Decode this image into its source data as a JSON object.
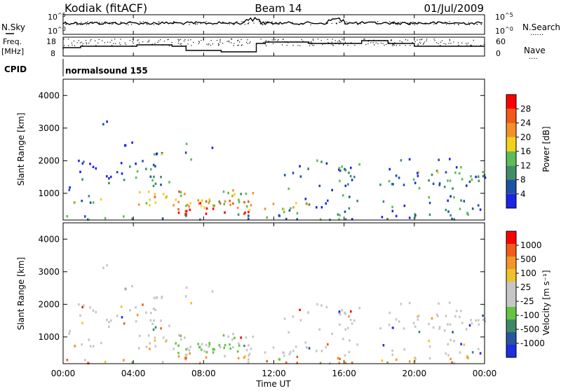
{
  "header": {
    "station": "Kodiak (fitACF)",
    "beam": "Beam 14",
    "date": "01/Jul/2009"
  },
  "side_labels": {
    "nsky": "N.Sky",
    "freq_line1": "Freq.",
    "freq_line2": "[MHz]",
    "cpid": "CPID",
    "nsearch": "N.Search",
    "nave": "Nave",
    "dotted": "......",
    "nave_dotted": "...."
  },
  "cpid_text": "normalsound 155",
  "chart_data": [
    {
      "type": "line",
      "panel": "noise",
      "ylabels": [
        "10^5",
        "10^0"
      ],
      "right_ylabels": [
        "10^5",
        "10^0"
      ],
      "series": [
        {
          "name": "N.Sky"
        },
        {
          "name": "N.Search"
        }
      ]
    },
    {
      "type": "line",
      "panel": "frequency_nave",
      "left_ticks": [
        "18",
        "8"
      ],
      "right_ticks": [
        "60",
        "0"
      ],
      "series": [
        {
          "name": "Freq."
        },
        {
          "name": "Nave"
        }
      ]
    },
    {
      "type": "heatmap",
      "panel": "power",
      "ylabel": "Slant Range [km]",
      "yticks": [
        "1000",
        "2000",
        "3000",
        "4000"
      ],
      "ylim": [
        180,
        4500
      ],
      "xlim": [
        0,
        24
      ],
      "colorbar_label": "Power [dB]",
      "colorbar_ticks": [
        "4",
        "8",
        "12",
        "16",
        "20",
        "24",
        "28"
      ],
      "colorbar_colors": [
        "#1e24e6",
        "#1c52a3",
        "#3f8d6a",
        "#5cbd56",
        "#f1d11d",
        "#f19226",
        "#f25a16",
        "#ff0000"
      ]
    },
    {
      "type": "heatmap",
      "panel": "velocity",
      "ylabel": "Slant Range [km]",
      "yticks": [
        "1000",
        "2000",
        "3000",
        "4000"
      ],
      "ylim": [
        180,
        4500
      ],
      "xlim": [
        0,
        24
      ],
      "xlabel": "Time UT",
      "xticks": [
        "00:00",
        "04:00",
        "08:00",
        "12:00",
        "16:00",
        "20:00",
        "00:00"
      ],
      "colorbar_label": "Velocity [m s⁻¹]",
      "colorbar_ticks": [
        "1000",
        "500",
        "100",
        "25",
        "-25",
        "-100",
        "-500",
        "-1000"
      ],
      "colorbar_colors": [
        "#1b2ee0",
        "#28559f",
        "#3e8a68",
        "#63c441",
        "#c6c6c6",
        "#c6c6c6",
        "#f0c22a",
        "#f19627",
        "#f25c1a",
        "#ff0000"
      ]
    }
  ]
}
